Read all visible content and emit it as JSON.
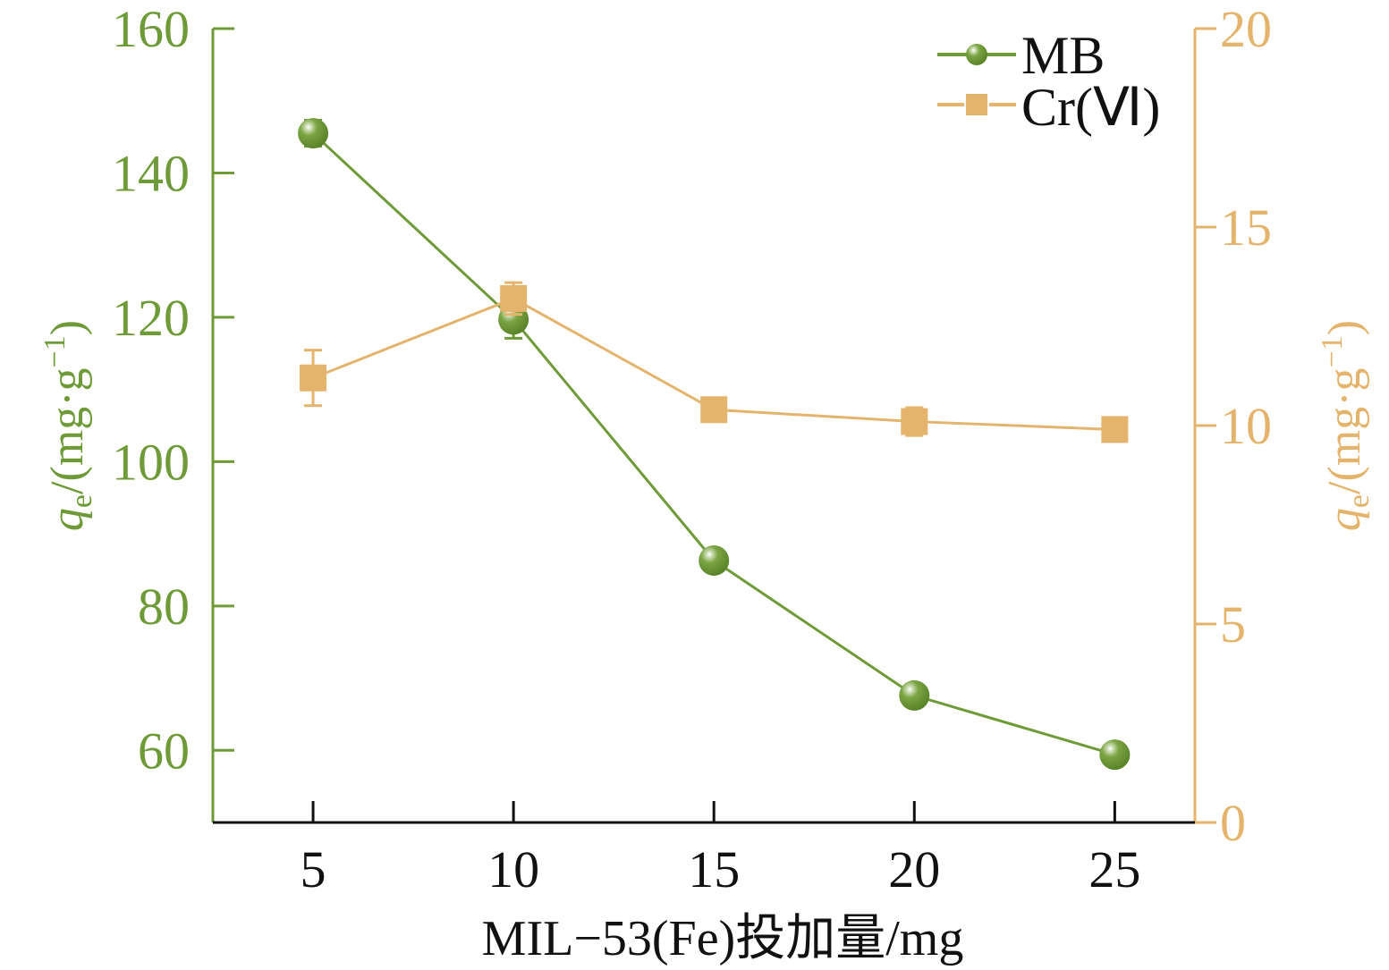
{
  "chart_data": {
    "type": "line",
    "title": "",
    "xlabel": "MIL−53(Fe)投加量/mg",
    "x": [
      5,
      10,
      15,
      20,
      25
    ],
    "xlim": [
      2.5,
      27
    ],
    "xticks": [
      "5",
      "10",
      "15",
      "20",
      "25"
    ],
    "ylabel_left": {
      "q": "q",
      "sub": "e",
      "unit": "/(mg·g",
      "sup": "−1",
      "close": ")"
    },
    "ylabel_right": {
      "q": "q",
      "sub": "e",
      "unit": "/(mg·g",
      "sup": "−1",
      "close": ")"
    },
    "ylim_left": [
      50,
      160
    ],
    "yticks_left": [
      60,
      80,
      100,
      120,
      140,
      160
    ],
    "ylim_right": [
      0,
      20
    ],
    "yticks_right": [
      0,
      5,
      10,
      15,
      20
    ],
    "grid": false,
    "legend_position": "top-right",
    "series": [
      {
        "name": "MB",
        "axis": "left",
        "marker": "sphere",
        "color": "#6e9a37",
        "values": [
          145.5,
          119.7,
          86.3,
          67.6,
          59.4
        ],
        "errors": [
          1.8,
          2.6,
          0.5,
          0.5,
          0.5
        ]
      },
      {
        "name": "Cr(Ⅵ)",
        "axis": "right",
        "marker": "square",
        "color": "#e5b46c",
        "values": [
          11.2,
          13.2,
          10.4,
          10.1,
          9.9
        ],
        "errors": [
          0.7,
          0.4,
          0.1,
          0.35,
          0.1
        ]
      }
    ]
  }
}
